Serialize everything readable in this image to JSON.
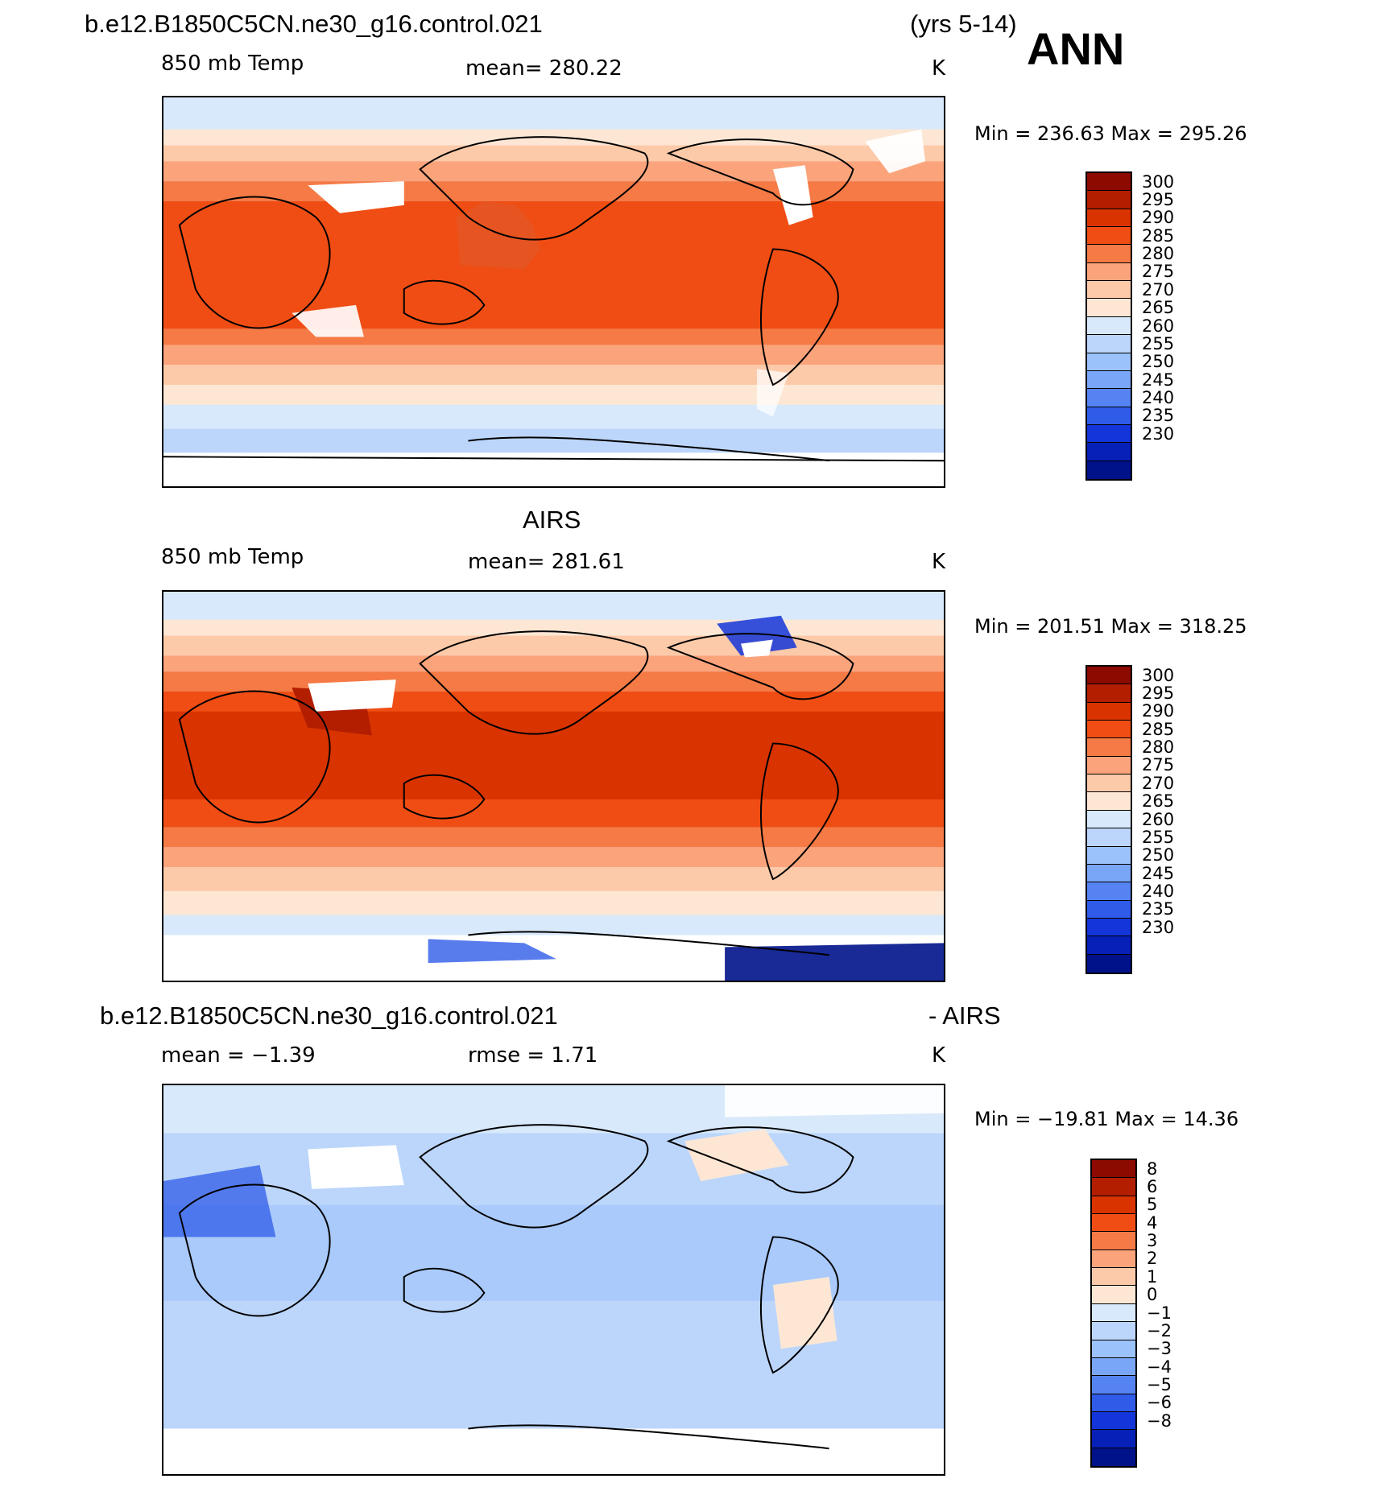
{
  "top_left_title": "b.e12.B1850C5CN.ne30_g16.control.021",
  "years": "(yrs 5-14)",
  "season": "ANN",
  "panels": [
    {
      "id": "model",
      "variable": "850 mb Temp",
      "mean_text": "mean=  280.22",
      "units": "K",
      "minmax_text": "Min  =  236.63  Max  =  295.26",
      "levels": [
        "300",
        "295",
        "290",
        "285",
        "280",
        "275",
        "270",
        "265",
        "260",
        "255",
        "250",
        "245",
        "240",
        "235",
        "230"
      ],
      "colors": [
        "#8c0a00",
        "#b31e00",
        "#d93300",
        "#f04d14",
        "#f57a45",
        "#fba47c",
        "#fdcaa9",
        "#fde7d4",
        "#d8e9fb",
        "#bcd6fb",
        "#9cc2fb",
        "#7aa6f7",
        "#5584f2",
        "#2f5be8",
        "#1335d9",
        "#0620b8",
        "#00128a"
      ],
      "label_y_positions": [
        300,
        295,
        290,
        285,
        280,
        275,
        270,
        265,
        260,
        255,
        250,
        245,
        240,
        235,
        230
      ]
    },
    {
      "id": "obs",
      "title": "AIRS",
      "variable": "850 mb Temp",
      "mean_text": "mean=  281.61",
      "units": "K",
      "minmax_text": "Min  =  201.51  Max  =  318.25",
      "levels": [
        "300",
        "295",
        "290",
        "285",
        "280",
        "275",
        "270",
        "265",
        "260",
        "255",
        "250",
        "245",
        "240",
        "235",
        "230"
      ],
      "colors": [
        "#8c0a00",
        "#b31e00",
        "#d93300",
        "#f04d14",
        "#f57a45",
        "#fba47c",
        "#fdcaa9",
        "#fde7d4",
        "#d8e9fb",
        "#bcd6fb",
        "#9cc2fb",
        "#7aa6f7",
        "#5584f2",
        "#2f5be8",
        "#1335d9",
        "#0620b8",
        "#00128a"
      ]
    },
    {
      "id": "diff",
      "title": "b.e12.B1850C5CN.ne30_g16.control.021",
      "title_right": "- AIRS",
      "mean_text": "mean  =    −1.39",
      "rmse_text": "rmse  =     1.71",
      "units": "K",
      "minmax_text": "Min  =  −19.81  Max  =    14.36",
      "levels": [
        "8",
        "6",
        "5",
        "4",
        "3",
        "2",
        "1",
        "0",
        "−1",
        "−2",
        "−3",
        "−4",
        "−5",
        "−6",
        "−8"
      ],
      "colors": [
        "#8c0a00",
        "#b31e00",
        "#d93300",
        "#f04d14",
        "#f57a45",
        "#fba47c",
        "#fdcaa9",
        "#fde7d4",
        "#d8e9fb",
        "#bcd6fb",
        "#9cc2fb",
        "#7aa6f7",
        "#5584f2",
        "#2f5be8",
        "#1335d9",
        "#0620b8",
        "#00128a"
      ]
    }
  ]
}
